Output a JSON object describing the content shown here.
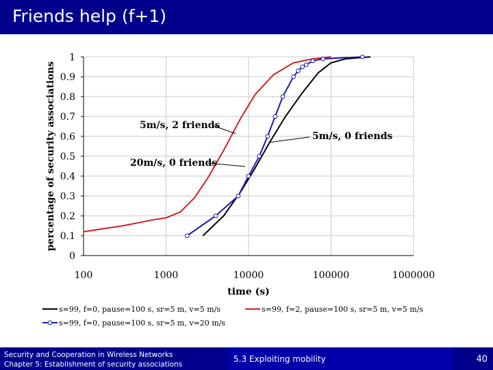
{
  "slide": {
    "title": "Friends help (f+1)",
    "footer_line1": "Security and Cooperation in Wireless Networks",
    "footer_line2": "Chapter 5: Establishment of security associations",
    "section": "5.3 Exploiting mobility",
    "page": "40"
  },
  "colors": {
    "header": "#00008b",
    "red": "#cc2222",
    "black": "#000000",
    "blue": "#1a1aaa"
  },
  "chart_data": {
    "type": "line",
    "xlabel": "time (s)",
    "ylabel": "percentage of security associations",
    "x_scale": "log",
    "xlim": [
      100,
      1000000
    ],
    "ylim": [
      0,
      1
    ],
    "x_ticks": [
      100,
      1000,
      10000,
      100000,
      1000000
    ],
    "x_tick_labels": [
      "100",
      "1000",
      "10000",
      "100000",
      "1000000"
    ],
    "y_ticks": [
      0,
      0.1,
      0.2,
      0.3,
      0.4,
      0.5,
      0.6,
      0.7,
      0.8,
      0.9,
      1
    ],
    "y_tick_labels": [
      "0",
      "0.1",
      "0.2",
      "0.3",
      "0.4",
      "0.5",
      "0.6",
      "0.7",
      "0.8",
      "0.9",
      "1"
    ],
    "grid": true,
    "legend_position": "bottom",
    "series": [
      {
        "name": "s=99, f=0, pause=100 s, sr=5 m, v=5 m/s",
        "color": "#000000",
        "marker": "none",
        "points": [
          [
            2800,
            0.1
          ],
          [
            5000,
            0.2
          ],
          [
            8000,
            0.32
          ],
          [
            12000,
            0.44
          ],
          [
            18000,
            0.57
          ],
          [
            28000,
            0.7
          ],
          [
            45000,
            0.82
          ],
          [
            70000,
            0.92
          ],
          [
            100000,
            0.97
          ],
          [
            150000,
            0.99
          ],
          [
            300000,
            1.0
          ]
        ]
      },
      {
        "name": "s=99, f=2, pause=100 s, sr=5 m, v=5 m/s",
        "color": "#cc2222",
        "marker": "none",
        "points": [
          [
            100,
            0.12
          ],
          [
            300,
            0.15
          ],
          [
            700,
            0.18
          ],
          [
            1000,
            0.19
          ],
          [
            1500,
            0.22
          ],
          [
            2200,
            0.29
          ],
          [
            3200,
            0.39
          ],
          [
            5000,
            0.53
          ],
          [
            8000,
            0.69
          ],
          [
            12000,
            0.81
          ],
          [
            20000,
            0.91
          ],
          [
            35000,
            0.97
          ],
          [
            60000,
            0.99
          ],
          [
            100000,
            1.0
          ]
        ]
      },
      {
        "name": "s=99, f=0, pause=100 s, sr=5 m, v=20 m/s",
        "color": "#1a1aaa",
        "marker": "circle",
        "points": [
          [
            1800,
            0.1
          ],
          [
            4000,
            0.2
          ],
          [
            7500,
            0.3
          ],
          [
            10000,
            0.4
          ],
          [
            13500,
            0.5
          ],
          [
            17000,
            0.6
          ],
          [
            21000,
            0.7
          ],
          [
            26000,
            0.8
          ],
          [
            35000,
            0.9
          ],
          [
            40000,
            0.93
          ],
          [
            45000,
            0.95
          ],
          [
            50000,
            0.96
          ],
          [
            60000,
            0.98
          ],
          [
            80000,
            0.99
          ],
          [
            240000,
            1.0
          ]
        ]
      }
    ],
    "annotations": [
      {
        "text": "5m/s, 2 friends",
        "series": 1
      },
      {
        "text": "5m/s, 0 friends",
        "series": 0
      },
      {
        "text": "20m/s, 0 friends",
        "series": 2
      }
    ]
  }
}
